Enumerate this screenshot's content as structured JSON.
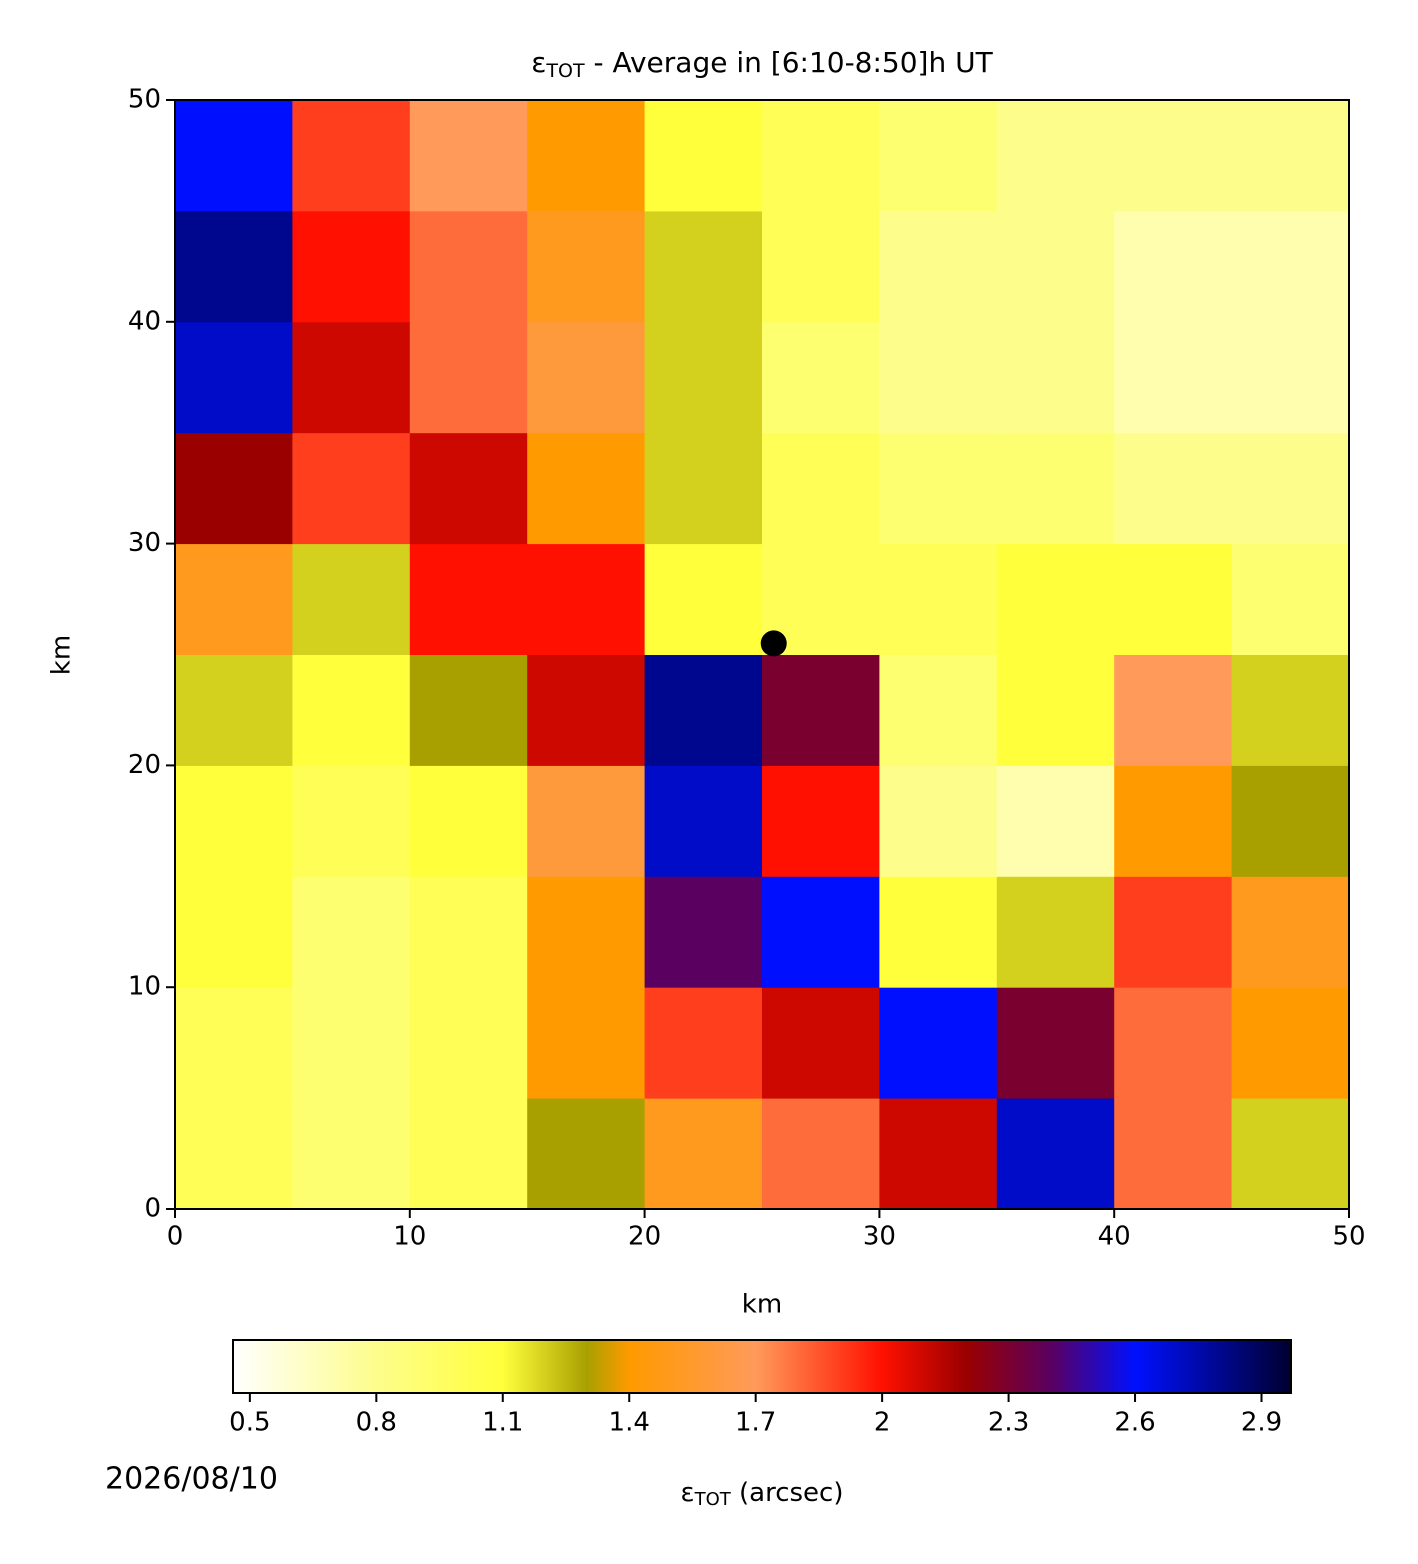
{
  "chart_data": {
    "type": "heatmap",
    "title_symbol": "ε",
    "title_sub": "TOT",
    "title_rest": " - Average in [6:10-8:50]h UT",
    "x_label": "km",
    "y_label": "km",
    "xlim": [
      0,
      50
    ],
    "ylim": [
      0,
      50
    ],
    "xticks": [
      0,
      10,
      20,
      30,
      40,
      50
    ],
    "yticks": [
      0,
      10,
      20,
      30,
      40,
      50
    ],
    "x": [
      2.5,
      7.5,
      12.5,
      17.5,
      22.5,
      27.5,
      32.5,
      37.5,
      42.5,
      47.5
    ],
    "y": [
      2.5,
      7.5,
      12.5,
      17.5,
      22.5,
      27.5,
      32.5,
      37.5,
      42.5,
      47.5
    ],
    "z": [
      [
        1.0,
        0.9,
        1.0,
        1.3,
        1.5,
        1.8,
        2.1,
        2.7,
        1.8,
        1.2
      ],
      [
        1.0,
        0.9,
        1.0,
        1.4,
        1.9,
        2.1,
        2.6,
        2.3,
        1.8,
        1.4
      ],
      [
        1.1,
        0.9,
        1.0,
        1.4,
        2.4,
        2.6,
        1.1,
        1.2,
        1.9,
        1.5
      ],
      [
        1.1,
        1.0,
        1.1,
        1.6,
        2.7,
        2.0,
        0.8,
        0.7,
        1.4,
        1.3
      ],
      [
        1.2,
        1.1,
        1.3,
        2.1,
        2.8,
        2.3,
        0.9,
        1.1,
        1.7,
        1.2
      ],
      [
        1.5,
        1.2,
        2.0,
        2.0,
        1.1,
        1.0,
        1.0,
        1.1,
        1.1,
        0.9
      ],
      [
        2.2,
        1.9,
        2.1,
        1.4,
        1.2,
        1.0,
        0.9,
        0.9,
        0.8,
        0.8
      ],
      [
        2.7,
        2.1,
        1.8,
        1.6,
        1.2,
        0.9,
        0.8,
        0.8,
        0.7,
        0.7
      ],
      [
        2.8,
        2.0,
        1.8,
        1.5,
        1.2,
        1.0,
        0.8,
        0.8,
        0.7,
        0.7
      ],
      [
        2.6,
        1.9,
        1.7,
        1.4,
        1.1,
        1.0,
        0.9,
        0.8,
        0.8,
        0.8
      ]
    ],
    "markers": [
      {
        "x": 25.5,
        "y": 25.5,
        "color": "#000000"
      }
    ],
    "colorbar": {
      "label_symbol": "ε",
      "label_sub": "TOT",
      "label_rest": " (arcsec)",
      "lim": [
        0.46,
        2.97
      ],
      "ticks": [
        0.5,
        0.8,
        1.1,
        1.4,
        1.7,
        2.0,
        2.3,
        2.6,
        2.9
      ],
      "stops": [
        [
          0.46,
          "#ffffff"
        ],
        [
          0.8,
          "#fdfd8c"
        ],
        [
          1.1,
          "#ffff3c"
        ],
        [
          1.3,
          "#a8a000"
        ],
        [
          1.4,
          "#ff9a00"
        ],
        [
          1.7,
          "#ff9a5a"
        ],
        [
          2.0,
          "#ff1000"
        ],
        [
          2.2,
          "#9a0000"
        ],
        [
          2.4,
          "#5a0060"
        ],
        [
          2.6,
          "#0010ff"
        ],
        [
          2.97,
          "#000030"
        ]
      ]
    },
    "date": "2026/08/10"
  }
}
